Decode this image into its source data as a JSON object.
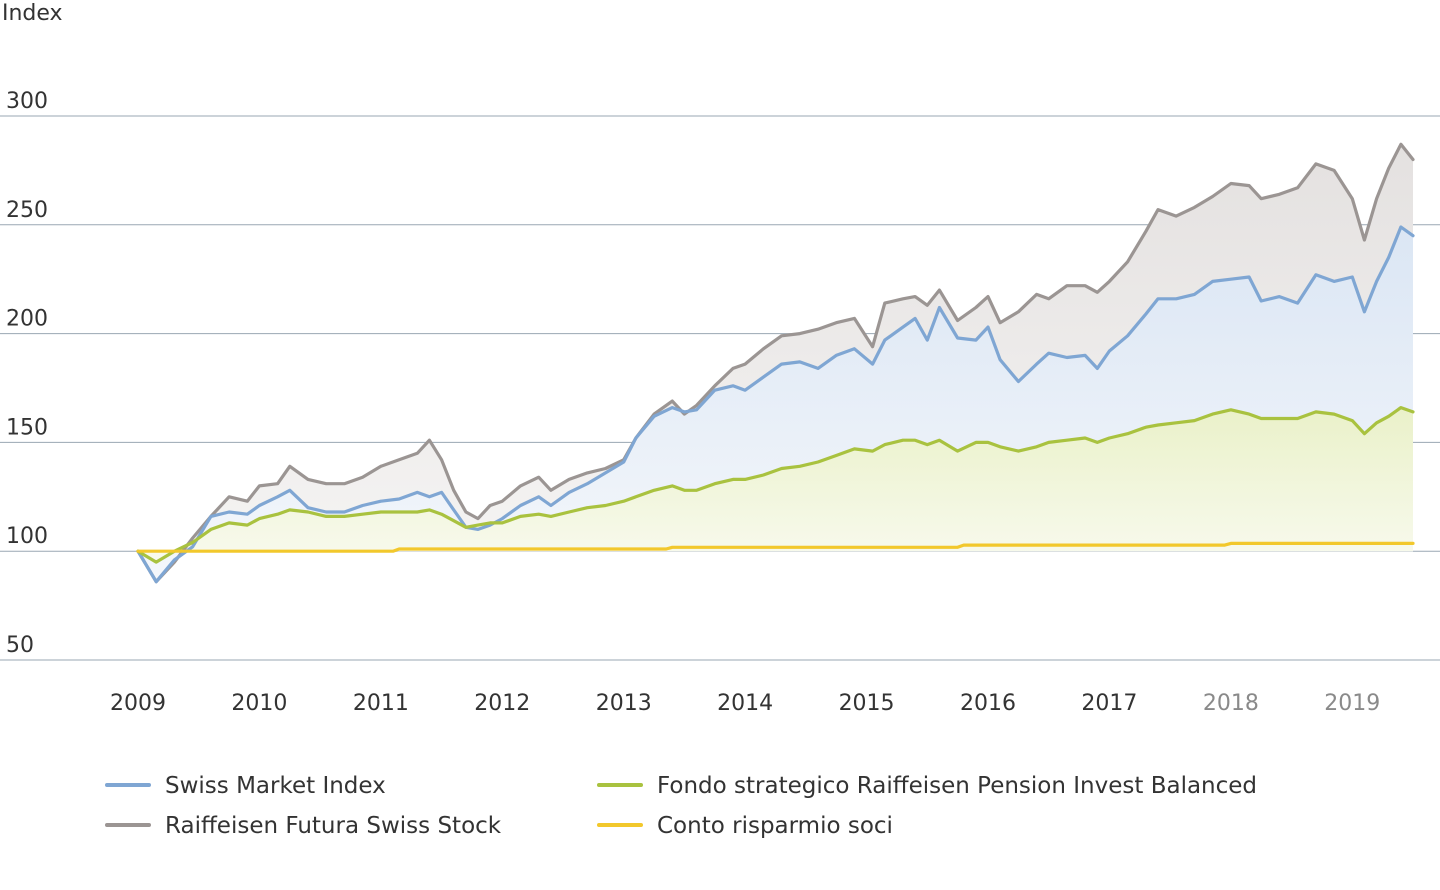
{
  "chart_data": {
    "type": "line",
    "ylabel": "Index",
    "ylim": [
      50,
      300
    ],
    "y_ticks": [
      "300",
      "250",
      "200",
      "150",
      "100",
      "50"
    ],
    "x_ticks": [
      "2009",
      "2010",
      "2011",
      "2012",
      "2013",
      "2014",
      "2015",
      "2016",
      "2017",
      "2018",
      "2019"
    ],
    "x_range": [
      2009.0,
      2019.5
    ],
    "grid": true,
    "legend_position": "bottom",
    "series": [
      {
        "name": "Raiffeisen Futura Swiss Stock",
        "color": "#9b9593",
        "fill": "#ebe9e8",
        "anchors": [
          [
            2009.0,
            100
          ],
          [
            2009.15,
            86
          ],
          [
            2009.3,
            95
          ],
          [
            2009.45,
            106
          ],
          [
            2009.6,
            116
          ],
          [
            2009.75,
            125
          ],
          [
            2009.9,
            123
          ],
          [
            2010.0,
            130
          ],
          [
            2010.15,
            131
          ],
          [
            2010.25,
            139
          ],
          [
            2010.4,
            133
          ],
          [
            2010.55,
            131
          ],
          [
            2010.7,
            131
          ],
          [
            2010.85,
            134
          ],
          [
            2011.0,
            139
          ],
          [
            2011.15,
            142
          ],
          [
            2011.3,
            145
          ],
          [
            2011.4,
            151
          ],
          [
            2011.5,
            142
          ],
          [
            2011.6,
            128
          ],
          [
            2011.7,
            118
          ],
          [
            2011.8,
            115
          ],
          [
            2011.9,
            121
          ],
          [
            2012.0,
            123
          ],
          [
            2012.15,
            130
          ],
          [
            2012.3,
            134
          ],
          [
            2012.4,
            128
          ],
          [
            2012.55,
            133
          ],
          [
            2012.7,
            136
          ],
          [
            2012.85,
            138
          ],
          [
            2013.0,
            142
          ],
          [
            2013.1,
            152
          ],
          [
            2013.25,
            163
          ],
          [
            2013.4,
            169
          ],
          [
            2013.5,
            163
          ],
          [
            2013.6,
            167
          ],
          [
            2013.75,
            176
          ],
          [
            2013.9,
            184
          ],
          [
            2014.0,
            186
          ],
          [
            2014.15,
            193
          ],
          [
            2014.3,
            199
          ],
          [
            2014.45,
            200
          ],
          [
            2014.6,
            202
          ],
          [
            2014.75,
            205
          ],
          [
            2014.9,
            207
          ],
          [
            2015.05,
            194
          ],
          [
            2015.15,
            214
          ],
          [
            2015.3,
            216
          ],
          [
            2015.4,
            217
          ],
          [
            2015.5,
            213
          ],
          [
            2015.6,
            220
          ],
          [
            2015.75,
            206
          ],
          [
            2015.9,
            212
          ],
          [
            2016.0,
            217
          ],
          [
            2016.1,
            205
          ],
          [
            2016.25,
            210
          ],
          [
            2016.4,
            218
          ],
          [
            2016.5,
            216
          ],
          [
            2016.65,
            222
          ],
          [
            2016.8,
            222
          ],
          [
            2016.9,
            219
          ],
          [
            2017.0,
            224
          ],
          [
            2017.15,
            233
          ],
          [
            2017.3,
            247
          ],
          [
            2017.4,
            257
          ],
          [
            2017.55,
            254
          ],
          [
            2017.7,
            258
          ],
          [
            2017.85,
            263
          ],
          [
            2018.0,
            269
          ],
          [
            2018.15,
            268
          ],
          [
            2018.25,
            262
          ],
          [
            2018.4,
            264
          ],
          [
            2018.55,
            267
          ],
          [
            2018.7,
            278
          ],
          [
            2018.85,
            275
          ],
          [
            2019.0,
            262
          ],
          [
            2019.1,
            243
          ],
          [
            2019.2,
            262
          ],
          [
            2019.3,
            276
          ],
          [
            2019.4,
            287
          ],
          [
            2019.5,
            280
          ]
        ]
      },
      {
        "name": "Swiss Market Index",
        "color": "#7fa6d3",
        "fill": "#e8eef8",
        "anchors": [
          [
            2009.0,
            100
          ],
          [
            2009.15,
            86
          ],
          [
            2009.3,
            96
          ],
          [
            2009.45,
            102
          ],
          [
            2009.6,
            116
          ],
          [
            2009.75,
            118
          ],
          [
            2009.9,
            117
          ],
          [
            2010.0,
            121
          ],
          [
            2010.15,
            125
          ],
          [
            2010.25,
            128
          ],
          [
            2010.4,
            120
          ],
          [
            2010.55,
            118
          ],
          [
            2010.7,
            118
          ],
          [
            2010.85,
            121
          ],
          [
            2011.0,
            123
          ],
          [
            2011.15,
            124
          ],
          [
            2011.3,
            127
          ],
          [
            2011.4,
            125
          ],
          [
            2011.5,
            127
          ],
          [
            2011.6,
            119
          ],
          [
            2011.7,
            111
          ],
          [
            2011.8,
            110
          ],
          [
            2011.9,
            112
          ],
          [
            2012.0,
            115
          ],
          [
            2012.15,
            121
          ],
          [
            2012.3,
            125
          ],
          [
            2012.4,
            121
          ],
          [
            2012.55,
            127
          ],
          [
            2012.7,
            131
          ],
          [
            2012.85,
            136
          ],
          [
            2013.0,
            141
          ],
          [
            2013.1,
            152
          ],
          [
            2013.25,
            162
          ],
          [
            2013.4,
            166
          ],
          [
            2013.5,
            164
          ],
          [
            2013.6,
            165
          ],
          [
            2013.75,
            174
          ],
          [
            2013.9,
            176
          ],
          [
            2014.0,
            174
          ],
          [
            2014.15,
            180
          ],
          [
            2014.3,
            186
          ],
          [
            2014.45,
            187
          ],
          [
            2014.6,
            184
          ],
          [
            2014.75,
            190
          ],
          [
            2014.9,
            193
          ],
          [
            2015.05,
            186
          ],
          [
            2015.15,
            197
          ],
          [
            2015.3,
            203
          ],
          [
            2015.4,
            207
          ],
          [
            2015.5,
            197
          ],
          [
            2015.6,
            212
          ],
          [
            2015.75,
            198
          ],
          [
            2015.9,
            197
          ],
          [
            2016.0,
            203
          ],
          [
            2016.1,
            188
          ],
          [
            2016.25,
            178
          ],
          [
            2016.4,
            186
          ],
          [
            2016.5,
            191
          ],
          [
            2016.65,
            189
          ],
          [
            2016.8,
            190
          ],
          [
            2016.9,
            184
          ],
          [
            2017.0,
            192
          ],
          [
            2017.15,
            199
          ],
          [
            2017.3,
            209
          ],
          [
            2017.4,
            216
          ],
          [
            2017.55,
            216
          ],
          [
            2017.7,
            218
          ],
          [
            2017.85,
            224
          ],
          [
            2018.0,
            225
          ],
          [
            2018.15,
            226
          ],
          [
            2018.25,
            215
          ],
          [
            2018.4,
            217
          ],
          [
            2018.55,
            214
          ],
          [
            2018.7,
            227
          ],
          [
            2018.85,
            224
          ],
          [
            2019.0,
            226
          ],
          [
            2019.1,
            210
          ],
          [
            2019.2,
            224
          ],
          [
            2019.3,
            235
          ],
          [
            2019.4,
            249
          ],
          [
            2019.5,
            245
          ]
        ]
      },
      {
        "name": "Fondo strategico Raiffeisen Pension Invest Balanced",
        "color": "#a9c23f",
        "fill": "#f1f5dd",
        "anchors": [
          [
            2009.0,
            100
          ],
          [
            2009.15,
            95
          ],
          [
            2009.3,
            100
          ],
          [
            2009.45,
            104
          ],
          [
            2009.6,
            110
          ],
          [
            2009.75,
            113
          ],
          [
            2009.9,
            112
          ],
          [
            2010.0,
            115
          ],
          [
            2010.15,
            117
          ],
          [
            2010.25,
            119
          ],
          [
            2010.4,
            118
          ],
          [
            2010.55,
            116
          ],
          [
            2010.7,
            116
          ],
          [
            2010.85,
            117
          ],
          [
            2011.0,
            118
          ],
          [
            2011.15,
            118
          ],
          [
            2011.3,
            118
          ],
          [
            2011.4,
            119
          ],
          [
            2011.5,
            117
          ],
          [
            2011.6,
            114
          ],
          [
            2011.7,
            111
          ],
          [
            2011.8,
            112
          ],
          [
            2011.9,
            113
          ],
          [
            2012.0,
            113
          ],
          [
            2012.15,
            116
          ],
          [
            2012.3,
            117
          ],
          [
            2012.4,
            116
          ],
          [
            2012.55,
            118
          ],
          [
            2012.7,
            120
          ],
          [
            2012.85,
            121
          ],
          [
            2013.0,
            123
          ],
          [
            2013.1,
            125
          ],
          [
            2013.25,
            128
          ],
          [
            2013.4,
            130
          ],
          [
            2013.5,
            128
          ],
          [
            2013.6,
            128
          ],
          [
            2013.75,
            131
          ],
          [
            2013.9,
            133
          ],
          [
            2014.0,
            133
          ],
          [
            2014.15,
            135
          ],
          [
            2014.3,
            138
          ],
          [
            2014.45,
            139
          ],
          [
            2014.6,
            141
          ],
          [
            2014.75,
            144
          ],
          [
            2014.9,
            147
          ],
          [
            2015.05,
            146
          ],
          [
            2015.15,
            149
          ],
          [
            2015.3,
            151
          ],
          [
            2015.4,
            151
          ],
          [
            2015.5,
            149
          ],
          [
            2015.6,
            151
          ],
          [
            2015.75,
            146
          ],
          [
            2015.9,
            150
          ],
          [
            2016.0,
            150
          ],
          [
            2016.1,
            148
          ],
          [
            2016.25,
            146
          ],
          [
            2016.4,
            148
          ],
          [
            2016.5,
            150
          ],
          [
            2016.65,
            151
          ],
          [
            2016.8,
            152
          ],
          [
            2016.9,
            150
          ],
          [
            2017.0,
            152
          ],
          [
            2017.15,
            154
          ],
          [
            2017.3,
            157
          ],
          [
            2017.4,
            158
          ],
          [
            2017.55,
            159
          ],
          [
            2017.7,
            160
          ],
          [
            2017.85,
            163
          ],
          [
            2018.0,
            165
          ],
          [
            2018.15,
            163
          ],
          [
            2018.25,
            161
          ],
          [
            2018.4,
            161
          ],
          [
            2018.55,
            161
          ],
          [
            2018.7,
            164
          ],
          [
            2018.85,
            163
          ],
          [
            2019.0,
            160
          ],
          [
            2019.1,
            154
          ],
          [
            2019.2,
            159
          ],
          [
            2019.3,
            162
          ],
          [
            2019.4,
            166
          ],
          [
            2019.5,
            164
          ]
        ]
      },
      {
        "name": "Conto risparmio soci",
        "color": "#f2c82c",
        "fill": "",
        "anchors": [
          [
            2009.0,
            100
          ],
          [
            2011.1,
            100
          ],
          [
            2011.15,
            101
          ],
          [
            2013.35,
            101
          ],
          [
            2013.4,
            101.8
          ],
          [
            2015.75,
            101.8
          ],
          [
            2015.8,
            102.8
          ],
          [
            2017.95,
            102.8
          ],
          [
            2018.0,
            103.6
          ],
          [
            2019.5,
            103.6
          ]
        ]
      }
    ]
  }
}
